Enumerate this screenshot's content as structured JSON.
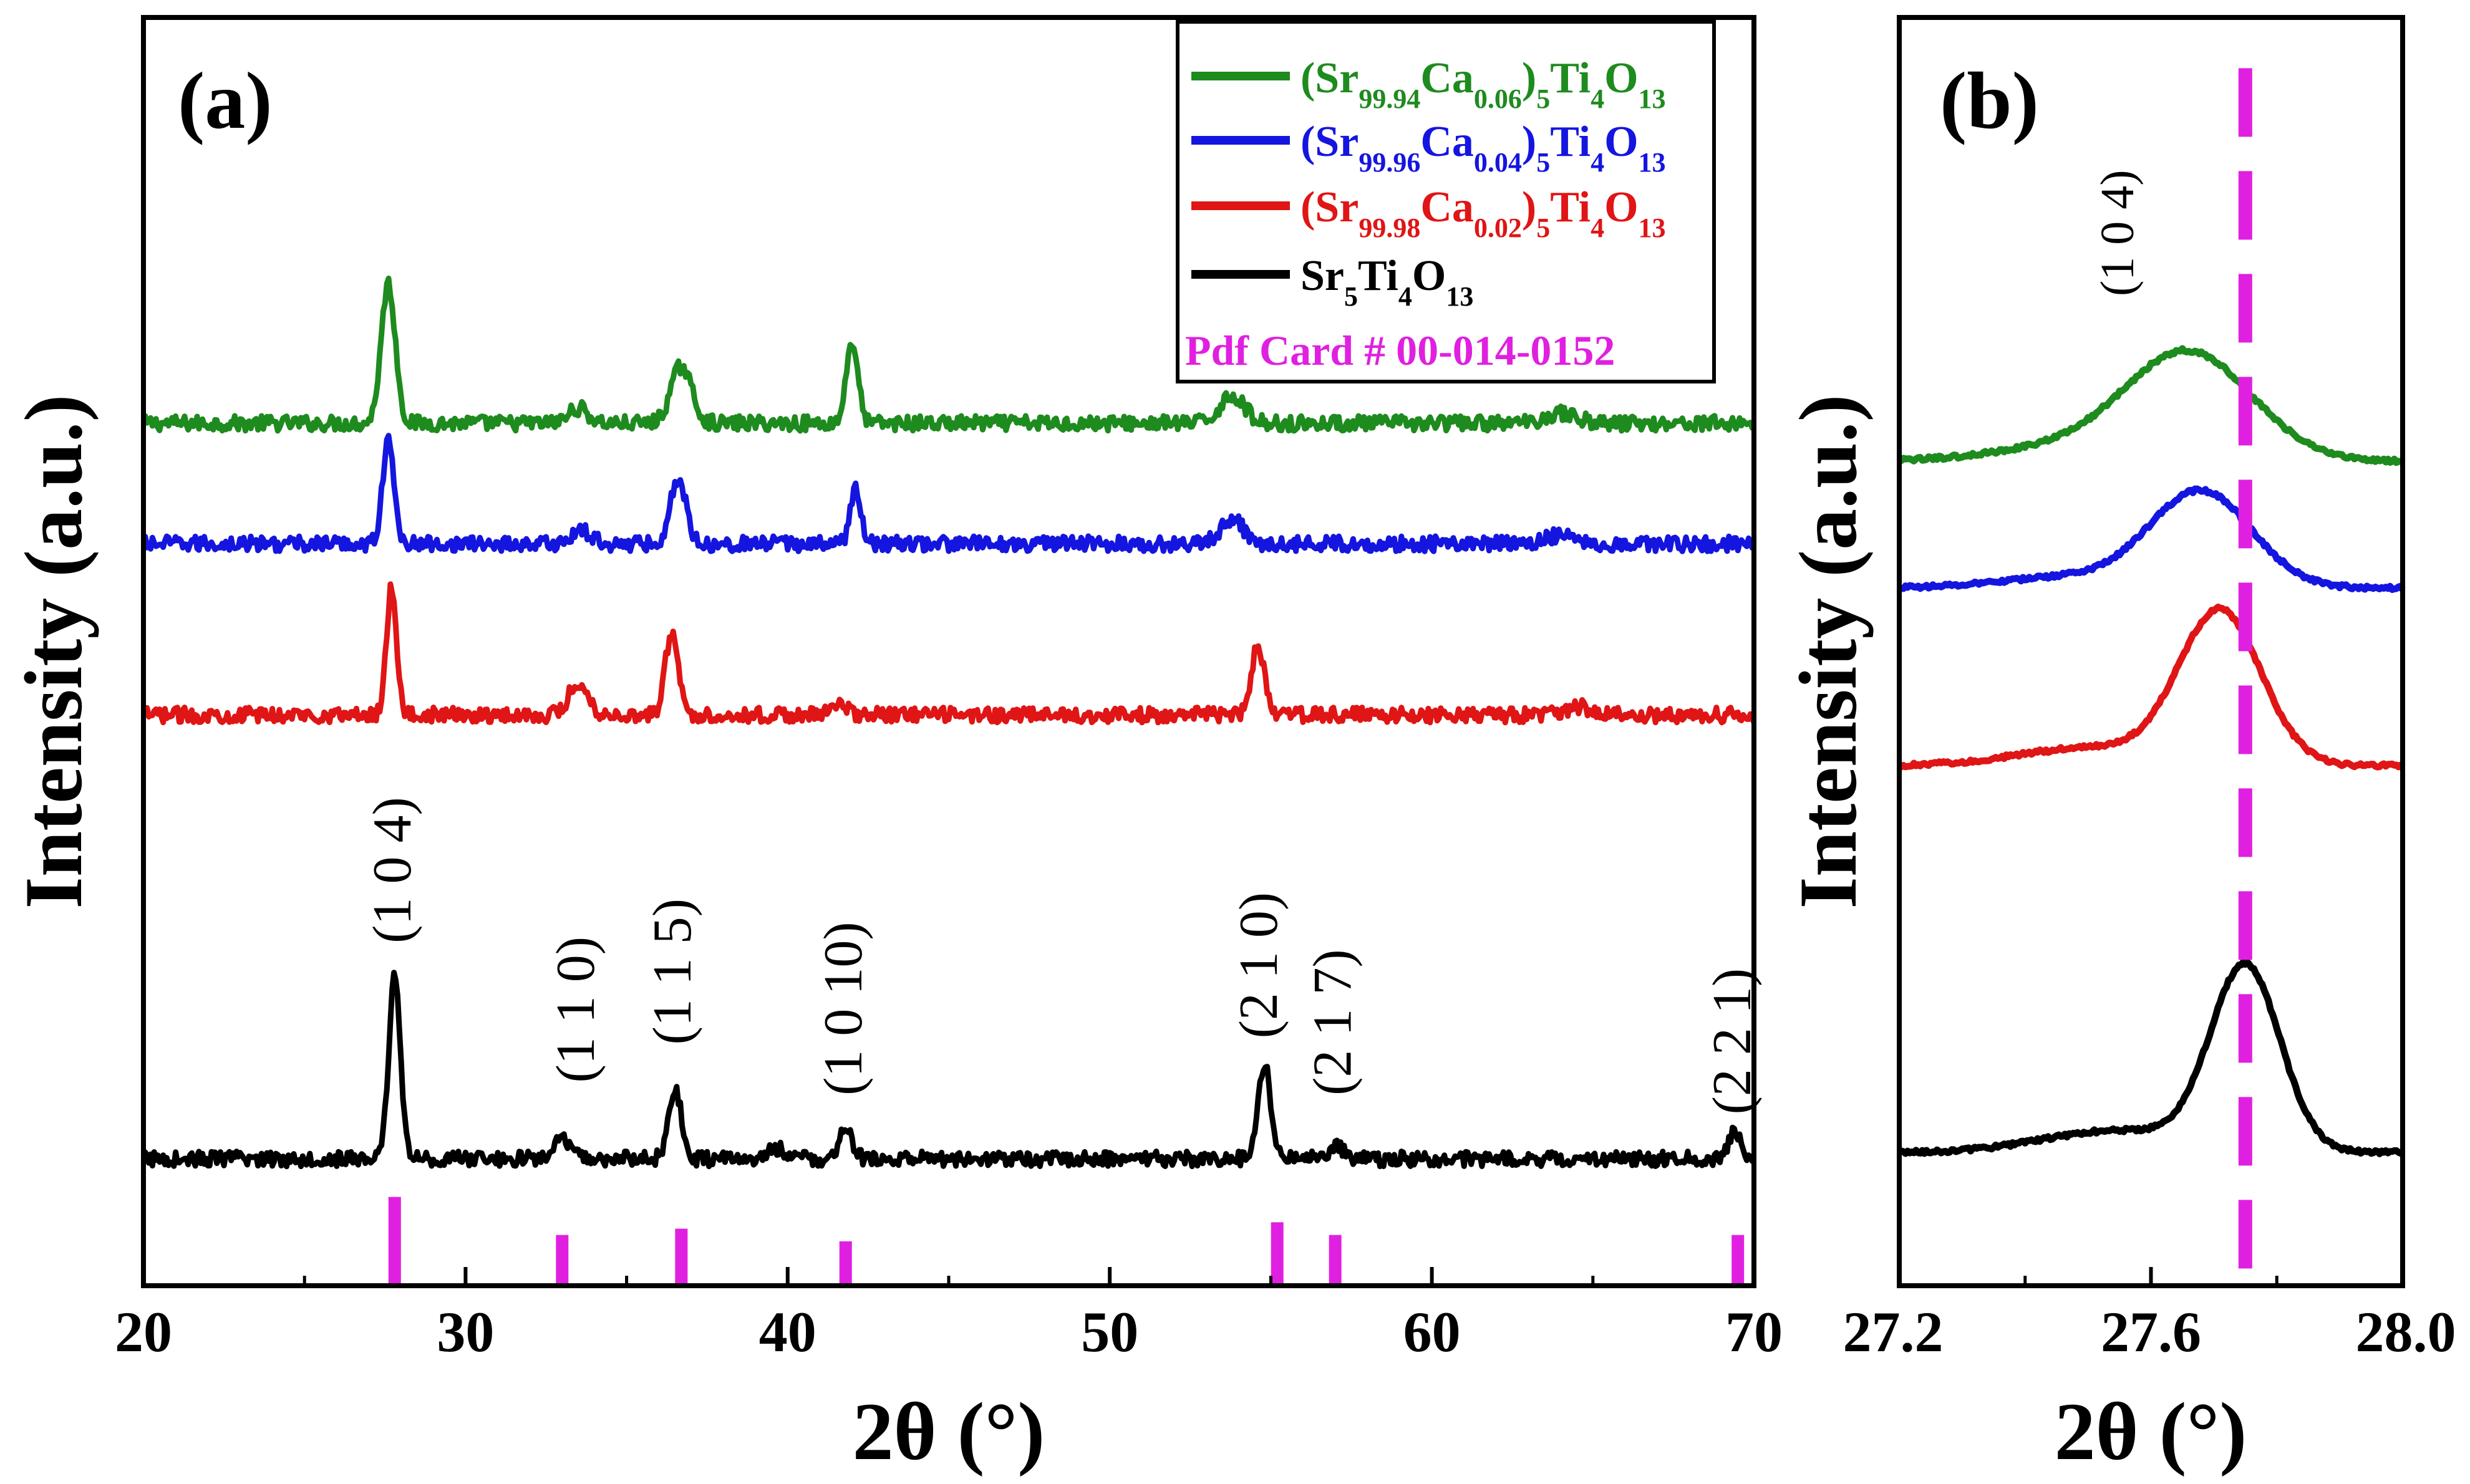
{
  "chart_data": [
    {
      "type": "line",
      "panel_label": "(a)",
      "xlabel": "2θ (°)",
      "ylabel": "Intensity (a.u.)",
      "xlim": [
        20,
        70
      ],
      "ylim": [
        0,
        10
      ],
      "x_ticks": [
        "20",
        "30",
        "40",
        "50",
        "60",
        "70"
      ],
      "series": [
        {
          "name": "(Sr99.94Ca0.06)5Ti4O13",
          "color": "#1e8b1e",
          "baseline": 6.8,
          "peaks": [
            {
              "x": 27.6,
              "h": 1.1,
              "w": 0.22
            },
            {
              "x": 33.5,
              "h": 0.12,
              "w": 0.3
            },
            {
              "x": 36.7,
              "h": 0.45,
              "w": 0.32
            },
            {
              "x": 42.0,
              "h": 0.65,
              "w": 0.18
            },
            {
              "x": 53.8,
              "h": 0.22,
              "w": 0.38
            },
            {
              "x": 64.0,
              "h": 0.08,
              "w": 0.5
            }
          ]
        },
        {
          "name": "(Sr99.96Ca0.04)5Ti4O13",
          "color": "#1515e0",
          "baseline": 5.85,
          "peaks": [
            {
              "x": 27.6,
              "h": 0.8,
              "w": 0.18
            },
            {
              "x": 33.6,
              "h": 0.1,
              "w": 0.3
            },
            {
              "x": 36.6,
              "h": 0.5,
              "w": 0.25
            },
            {
              "x": 42.1,
              "h": 0.45,
              "w": 0.16
            },
            {
              "x": 53.8,
              "h": 0.2,
              "w": 0.35
            },
            {
              "x": 64.0,
              "h": 0.07,
              "w": 0.5
            }
          ]
        },
        {
          "name": "(Sr99.98Ca0.02)5Ti4O13",
          "color": "#e01515",
          "baseline": 4.5,
          "peaks": [
            {
              "x": 27.7,
              "h": 1.0,
              "w": 0.16
            },
            {
              "x": 33.5,
              "h": 0.25,
              "w": 0.3
            },
            {
              "x": 36.4,
              "h": 0.65,
              "w": 0.2
            },
            {
              "x": 41.6,
              "h": 0.12,
              "w": 0.2
            },
            {
              "x": 54.6,
              "h": 0.55,
              "w": 0.2
            },
            {
              "x": 64.6,
              "h": 0.06,
              "w": 0.4
            }
          ]
        },
        {
          "name": "Sr5Ti4O13",
          "color": "#000000",
          "baseline": 1.0,
          "peaks": [
            {
              "x": 27.8,
              "h": 1.45,
              "w": 0.18
            },
            {
              "x": 33.0,
              "h": 0.14,
              "w": 0.3
            },
            {
              "x": 36.5,
              "h": 0.55,
              "w": 0.2
            },
            {
              "x": 39.7,
              "h": 0.08,
              "w": 0.3
            },
            {
              "x": 41.8,
              "h": 0.22,
              "w": 0.2
            },
            {
              "x": 54.8,
              "h": 0.75,
              "w": 0.2
            },
            {
              "x": 57.0,
              "h": 0.12,
              "w": 0.2
            },
            {
              "x": 69.4,
              "h": 0.2,
              "w": 0.2
            }
          ]
        }
      ],
      "reference": {
        "name": "Pdf Card # 00-014-0152",
        "color": "#e020e0",
        "positions": [
          27.8,
          33.0,
          36.7,
          41.8,
          55.2,
          57.0,
          69.5
        ],
        "heights": [
          0.7,
          0.4,
          0.45,
          0.35,
          0.5,
          0.4,
          0.4
        ]
      },
      "peak_labels": [
        {
          "x": 27.8,
          "y": 2.7,
          "text": "(1 0 4)"
        },
        {
          "x": 33.5,
          "y": 1.6,
          "text": "(1 1 0)"
        },
        {
          "x": 36.5,
          "y": 1.9,
          "text": "(1 1 5)"
        },
        {
          "x": 41.8,
          "y": 1.5,
          "text": "(1 0 10)"
        },
        {
          "x": 54.7,
          "y": 1.95,
          "text": "(2 1 0)"
        },
        {
          "x": 57.0,
          "y": 1.5,
          "text": "(2 1 7)"
        },
        {
          "x": 69.4,
          "y": 1.35,
          "text": "(2 2 1)"
        }
      ]
    },
    {
      "type": "line",
      "panel_label": "(b)",
      "xlabel": "2θ (°)",
      "ylabel": "Intensity (a.u.)",
      "xlim": [
        27.2,
        28.0
      ],
      "ylim": [
        0,
        10
      ],
      "x_ticks": [
        "27.2",
        "27.6",
        "28.0"
      ],
      "annotation": "(1 0 4)",
      "reference_line_x": 27.75,
      "series": [
        {
          "name": "(Sr99.94Ca0.06)5Ti4O13",
          "color": "#1e8b1e",
          "baseline": 6.5,
          "peak_x": 27.66,
          "peak_h": 0.85,
          "sigma": 0.1
        },
        {
          "name": "(Sr99.96Ca0.04)5Ti4O13",
          "color": "#1515e0",
          "baseline": 5.5,
          "peak_x": 27.68,
          "peak_h": 0.75,
          "sigma": 0.08
        },
        {
          "name": "(Sr99.98Ca0.02)5Ti4O13",
          "color": "#e01515",
          "baseline": 4.1,
          "peak_x": 27.71,
          "peak_h": 1.2,
          "sigma": 0.065
        },
        {
          "name": "Sr5Ti4O13",
          "color": "#000000",
          "baseline": 1.05,
          "peak_x": 27.75,
          "peak_h": 1.45,
          "sigma": 0.055
        }
      ]
    }
  ]
}
